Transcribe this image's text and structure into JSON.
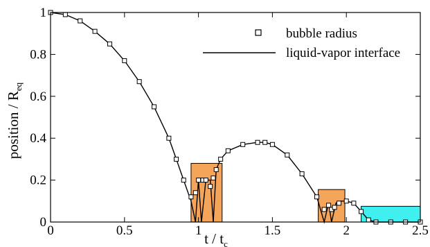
{
  "chart_data": {
    "type": "line",
    "xlim": [
      0,
      2.5
    ],
    "ylim": [
      0,
      1
    ],
    "x_ticks": [
      "0",
      "0.5",
      "1",
      "1.5",
      "2",
      "2.5"
    ],
    "y_ticks": [
      "0",
      "0.2",
      "0.4",
      "0.6",
      "0.8",
      "1"
    ],
    "x_tick_values": [
      0,
      0.5,
      1,
      1.5,
      2,
      2.5
    ],
    "y_tick_values": [
      0,
      0.2,
      0.4,
      0.6,
      0.8,
      1
    ],
    "xlabel_main": "t / t",
    "xlabel_sub": "c",
    "ylabel_main": "position / R",
    "ylabel_sub": "eq",
    "grid": false,
    "legend_position": "top-right",
    "series": [
      {
        "name": "bubble radius",
        "marker": "open-square",
        "x": [
          0.0,
          0.1,
          0.2,
          0.3,
          0.4,
          0.5,
          0.6,
          0.7,
          0.8,
          0.85,
          0.9,
          0.95,
          0.98,
          1.0,
          1.03,
          1.05,
          1.08,
          1.1,
          1.12,
          1.15,
          1.2,
          1.3,
          1.4,
          1.45,
          1.5,
          1.6,
          1.7,
          1.8,
          1.85,
          1.88,
          1.9,
          1.92,
          1.95,
          2.0,
          2.05,
          2.1,
          2.15,
          2.2,
          2.3,
          2.4,
          2.5
        ],
        "y": [
          1.0,
          0.99,
          0.96,
          0.91,
          0.85,
          0.77,
          0.67,
          0.55,
          0.4,
          0.3,
          0.2,
          0.12,
          0.14,
          0.2,
          0.2,
          0.2,
          0.17,
          0.21,
          0.25,
          0.3,
          0.34,
          0.37,
          0.38,
          0.38,
          0.37,
          0.32,
          0.23,
          0.12,
          0.06,
          0.08,
          0.06,
          0.07,
          0.09,
          0.1,
          0.09,
          0.05,
          0.01,
          0.0,
          0.0,
          0.0,
          0.0
        ]
      },
      {
        "name": "liquid-vapor interface",
        "marker": "line",
        "x": [
          0.0,
          0.1,
          0.2,
          0.3,
          0.4,
          0.5,
          0.6,
          0.7,
          0.8,
          0.85,
          0.9,
          0.95,
          0.98,
          1.0,
          1.02,
          1.05,
          1.08,
          1.1,
          1.12,
          1.15,
          1.2,
          1.3,
          1.4,
          1.45,
          1.5,
          1.6,
          1.7,
          1.8,
          1.85,
          1.88,
          1.9,
          1.93,
          1.96,
          2.0,
          2.05,
          2.1,
          2.15,
          2.2,
          2.3,
          2.4,
          2.5
        ],
        "y": [
          1.0,
          0.99,
          0.96,
          0.91,
          0.85,
          0.77,
          0.67,
          0.55,
          0.4,
          0.3,
          0.2,
          0.1,
          0.0,
          0.2,
          0.0,
          0.2,
          0.2,
          0.0,
          0.25,
          0.3,
          0.34,
          0.37,
          0.38,
          0.38,
          0.37,
          0.32,
          0.23,
          0.12,
          0.0,
          0.09,
          0.0,
          0.09,
          0.1,
          0.1,
          0.09,
          0.05,
          0.01,
          0.0,
          0.0,
          0.0,
          0.0
        ]
      }
    ],
    "shaded_regions": [
      {
        "x": [
          0.95,
          1.16
        ],
        "y": [
          0,
          0.28
        ],
        "color": "#f5a55a"
      },
      {
        "x": [
          1.81,
          1.99
        ],
        "y": [
          0,
          0.155
        ],
        "color": "#f5a55a"
      },
      {
        "x": [
          2.1,
          2.5
        ],
        "y": [
          0,
          0.075
        ],
        "color": "#40f0f0"
      }
    ]
  }
}
